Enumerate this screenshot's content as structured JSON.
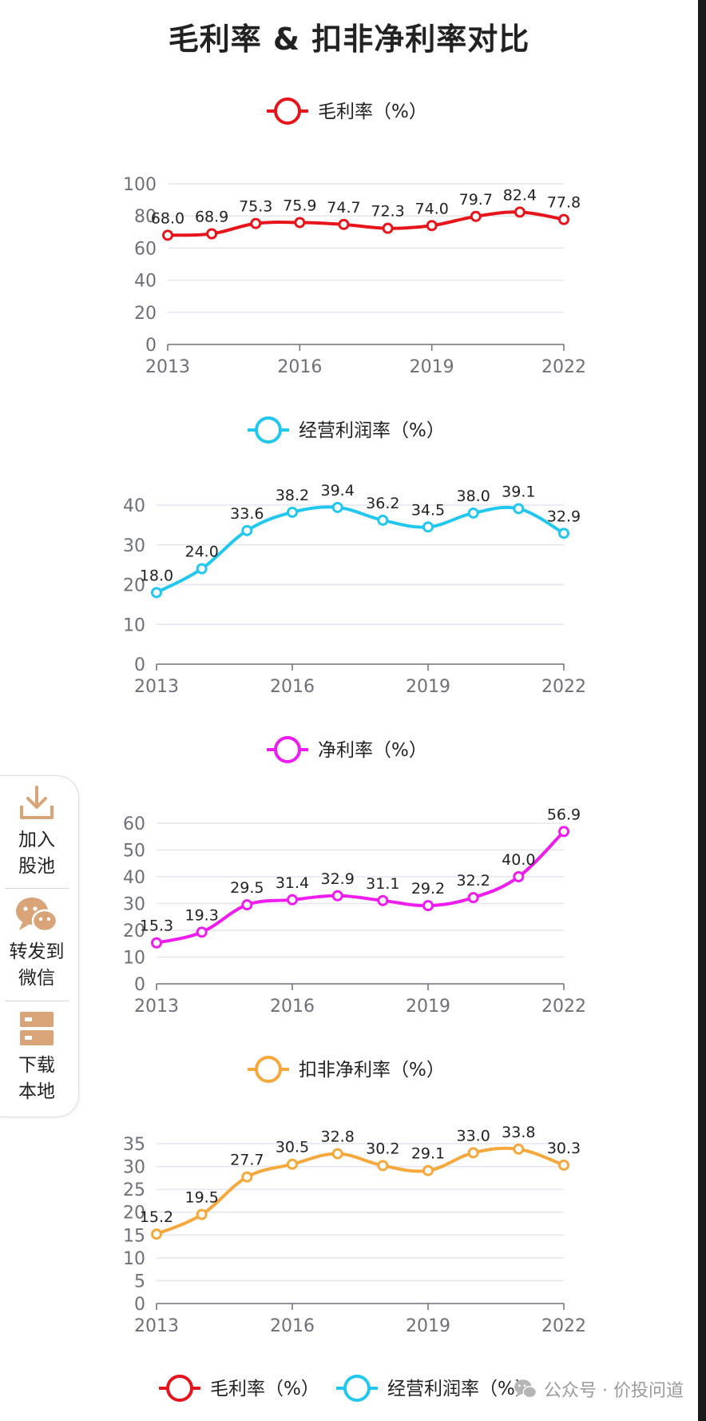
{
  "title": "毛利率 & 扣非净利率对比",
  "colors": {
    "gross": "#e8141b",
    "operating": "#22c7f0",
    "net": "#ee1cee",
    "deducted": "#f7a83c",
    "grid": "#e3e6f2",
    "axis": "#6e7079",
    "label": "#222222",
    "side_icon": "#d8a478"
  },
  "side_panel": {
    "items": [
      {
        "name": "add-to-pool",
        "icon": "download-icon",
        "line1": "加入",
        "line2": "股池"
      },
      {
        "name": "share-wechat",
        "icon": "wechat-icon",
        "line1": "转发到",
        "line2": "微信"
      },
      {
        "name": "download-local",
        "icon": "server-icon",
        "line1": "下载",
        "line2": "本地"
      }
    ]
  },
  "bottom_legend": [
    "毛利率（%）",
    "经营利润率（%）"
  ],
  "watermark": {
    "text": "公众号 · 价投问道",
    "icon": "wechat-icon"
  },
  "chart_data": [
    {
      "type": "line",
      "key": "gross",
      "legend": "毛利率（%）",
      "x": [
        2013,
        2014,
        2015,
        2016,
        2017,
        2018,
        2019,
        2020,
        2021,
        2022
      ],
      "values": [
        68.0,
        68.9,
        75.3,
        75.9,
        74.7,
        72.3,
        74.0,
        79.7,
        82.4,
        77.8
      ],
      "labels": [
        "68.0",
        "68.9",
        "75.3",
        "75.9",
        "74.7",
        "72.3",
        "74.0",
        "79.7",
        "82.4",
        "77.8"
      ],
      "x_ticks": [
        "2013",
        "2016",
        "2019",
        "2022"
      ],
      "y_ticks": [
        0,
        20,
        40,
        60,
        80,
        100
      ],
      "ylim": [
        0,
        100
      ]
    },
    {
      "type": "line",
      "key": "operating",
      "legend": "经营利润率（%）",
      "x": [
        2013,
        2014,
        2015,
        2016,
        2017,
        2018,
        2019,
        2020,
        2021,
        2022
      ],
      "values": [
        18.0,
        24.0,
        33.6,
        38.2,
        39.4,
        36.2,
        34.5,
        38.0,
        39.1,
        32.9
      ],
      "labels": [
        "18.0",
        "24.0",
        "33.6",
        "38.2",
        "39.4",
        "36.2",
        "34.5",
        "38.0",
        "39.1",
        "32.9"
      ],
      "x_ticks": [
        "2013",
        "2016",
        "2019",
        "2022"
      ],
      "y_ticks": [
        0,
        10,
        20,
        30,
        40
      ],
      "ylim": [
        0,
        40
      ]
    },
    {
      "type": "line",
      "key": "net",
      "legend": "净利率（%）",
      "x": [
        2013,
        2014,
        2015,
        2016,
        2017,
        2018,
        2019,
        2020,
        2021,
        2022
      ],
      "values": [
        15.3,
        19.3,
        29.5,
        31.4,
        32.9,
        31.1,
        29.2,
        32.2,
        40.0,
        56.9
      ],
      "labels": [
        "15.3",
        "19.3",
        "29.5",
        "31.4",
        "32.9",
        "31.1",
        "29.2",
        "32.2",
        "40.0",
        "56.9"
      ],
      "x_ticks": [
        "2013",
        "2016",
        "2019",
        "2022"
      ],
      "y_ticks": [
        0,
        10,
        20,
        30,
        40,
        50,
        60
      ],
      "ylim": [
        0,
        60
      ]
    },
    {
      "type": "line",
      "key": "deducted",
      "legend": "扣非净利率（%）",
      "x": [
        2013,
        2014,
        2015,
        2016,
        2017,
        2018,
        2019,
        2020,
        2021,
        2022
      ],
      "values": [
        15.2,
        19.5,
        27.7,
        30.5,
        32.8,
        30.2,
        29.1,
        33.0,
        33.8,
        30.3
      ],
      "labels": [
        "15.2",
        "19.5",
        "27.7",
        "30.5",
        "32.8",
        "30.2",
        "29.1",
        "33.0",
        "33.8",
        "30.3"
      ],
      "x_ticks": [
        "2013",
        "2016",
        "2019",
        "2022"
      ],
      "y_ticks": [
        0,
        5,
        10,
        15,
        20,
        25,
        30,
        35
      ],
      "ylim": [
        0,
        35
      ]
    }
  ]
}
